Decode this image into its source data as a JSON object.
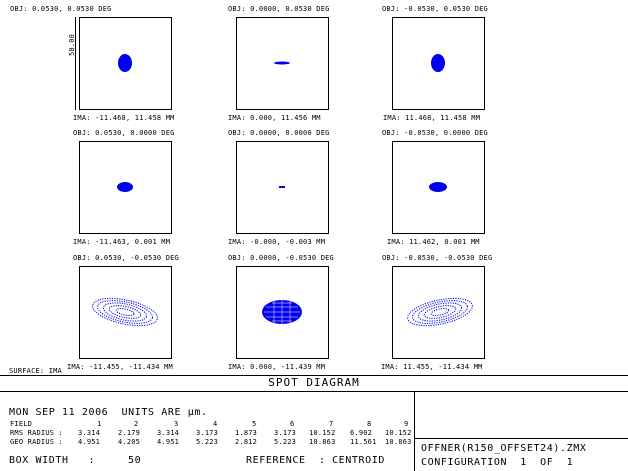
{
  "diagram_title": "SPOT DIAGRAM",
  "scale_label": "50.00",
  "surface_label": "SURFACE: IMA",
  "plots": [
    {
      "obj": "OBJ: 0.0530, 0.0530 DEG",
      "ima": "IMA: -11.468, 11.458 MM"
    },
    {
      "obj": "OBJ: 0.0000, 0.0530 DEG",
      "ima": "IMA: 0.000, 11.456 MM"
    },
    {
      "obj": "OBJ: -0.0530, 0.0530 DEG",
      "ima": "IMA: 11.468, 11.458 MM"
    },
    {
      "obj": "OBJ: 0.0530, 0.0000 DEG",
      "ima": "IMA: -11.463, 0.001 MM"
    },
    {
      "obj": "OBJ: 0.0000, 0.0000 DEG",
      "ima": "IMA: -0.000, -0.003 MM"
    },
    {
      "obj": "OBJ: -0.0530, 0.0000 DEG",
      "ima": "IMA: 11.462, 0.001 MM"
    },
    {
      "obj": "OBJ: 0.0530, -0.0530 DEG",
      "ima": "IMA: -11.455, -11.434 MM"
    },
    {
      "obj": "OBJ: 0.0000, -0.0530 DEG",
      "ima": "IMA: 0.000, -11.439 MM"
    },
    {
      "obj": "OBJ: -0.0530, -0.0530 DEG",
      "ima": "IMA: 11.455, -11.434 MM"
    }
  ],
  "footer": {
    "date_line": "MON SEP 11 2006  UNITS ARE µm.",
    "field_label": "FIELD",
    "field_values": [
      "1",
      "2",
      "3",
      "4",
      "5",
      "6",
      "7",
      "8",
      "9"
    ],
    "rms_label": "RMS RADIUS :",
    "rms_values": [
      "3.314",
      "2.179",
      "3.314",
      "3.173",
      "1.873",
      "3.173",
      "10.152",
      "6.902",
      "10.152"
    ],
    "geo_label": "GEO RADIUS :",
    "geo_values": [
      "4.951",
      "4.205",
      "4.951",
      "5.223",
      "2.812",
      "5.223",
      "10.863",
      "11.561",
      "10.863"
    ],
    "box_width_label": "BOX WIDTH   :",
    "box_width_value": "50",
    "reference_label": "REFERENCE  : CENTROID",
    "file_name": "OFFNER(R150_OFFSET24).ZMX",
    "configuration": "CONFIGURATION  1  OF  1"
  },
  "colors": {
    "spot": "#0000ee",
    "ink": "#000000"
  }
}
